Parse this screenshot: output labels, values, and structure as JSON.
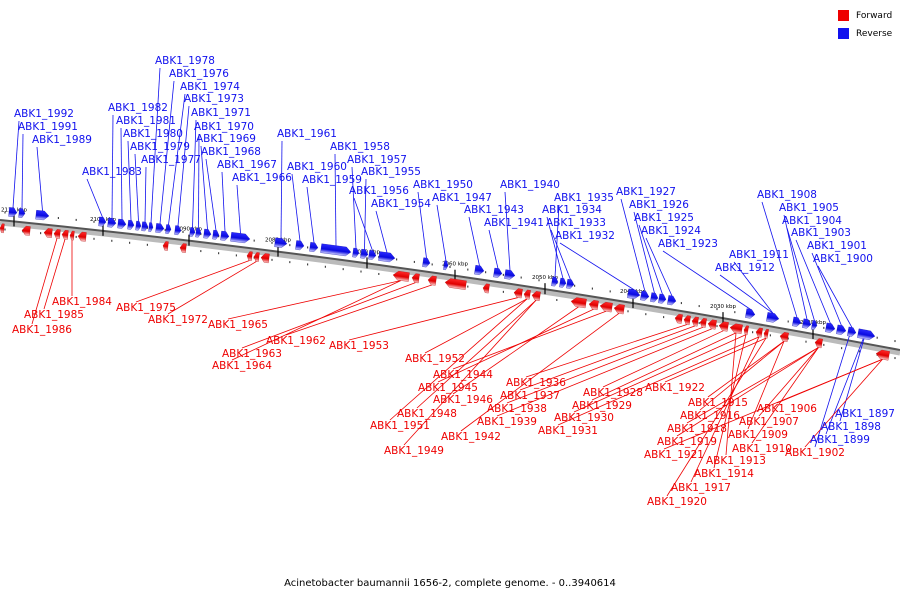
{
  "legend": {
    "forward_label": "Forward",
    "reverse_label": "Reverse",
    "forward_color": "#ee0000",
    "reverse_color": "#1111ee"
  },
  "caption": "Acinetobacter baumannii 1656-2, complete genome. - 0..3940614",
  "ruler_labels": [
    "2110 kbp",
    "2100 kbp",
    "2090 kbp",
    "2080 kbp",
    "2070 kbp",
    "2060 kbp",
    "2050 kbp",
    "2040 kbp",
    "2030 kbp",
    "2020 kbp"
  ],
  "reverse_genes": [
    "ABK1_1992",
    "ABK1_1991",
    "ABK1_1989",
    "ABK1_1983",
    "ABK1_1982",
    "ABK1_1981",
    "ABK1_1980",
    "ABK1_1979",
    "ABK1_1977",
    "ABK1_1978",
    "ABK1_1976",
    "ABK1_1974",
    "ABK1_1973",
    "ABK1_1971",
    "ABK1_1970",
    "ABK1_1969",
    "ABK1_1968",
    "ABK1_1967",
    "ABK1_1966",
    "ABK1_1961",
    "ABK1_1960",
    "ABK1_1959",
    "ABK1_1958",
    "ABK1_1957",
    "ABK1_1955",
    "ABK1_1956",
    "ABK1_1954",
    "ABK1_1950",
    "ABK1_1947",
    "ABK1_1943",
    "ABK1_1941",
    "ABK1_1940",
    "ABK1_1935",
    "ABK1_1934",
    "ABK1_1933",
    "ABK1_1932",
    "ABK1_1927",
    "ABK1_1926",
    "ABK1_1925",
    "ABK1_1924",
    "ABK1_1923",
    "ABK1_1911",
    "ABK1_1912",
    "ABK1_1908",
    "ABK1_1905",
    "ABK1_1904",
    "ABK1_1903",
    "ABK1_1901",
    "ABK1_1900",
    "ABK1_1897",
    "ABK1_1898",
    "ABK1_1899"
  ],
  "forward_genes": [
    "ABK1_1984",
    "ABK1_1985",
    "ABK1_1986",
    "ABK1_1975",
    "ABK1_1972",
    "ABK1_1965",
    "ABK1_1962",
    "ABK1_1963",
    "ABK1_1964",
    "ABK1_1953",
    "ABK1_1952",
    "ABK1_1944",
    "ABK1_1945",
    "ABK1_1946",
    "ABK1_1948",
    "ABK1_1951",
    "ABK1_1949",
    "ABK1_1942",
    "ABK1_1936",
    "ABK1_1937",
    "ABK1_1938",
    "ABK1_1939",
    "ABK1_1928",
    "ABK1_1929",
    "ABK1_1930",
    "ABK1_1931",
    "ABK1_1922",
    "ABK1_1915",
    "ABK1_1916",
    "ABK1_1918",
    "ABK1_1919",
    "ABK1_1921",
    "ABK1_1913",
    "ABK1_1914",
    "ABK1_1917",
    "ABK1_1920",
    "ABK1_1910",
    "ABK1_1909",
    "ABK1_1907",
    "ABK1_1906",
    "ABK1_1902"
  ]
}
